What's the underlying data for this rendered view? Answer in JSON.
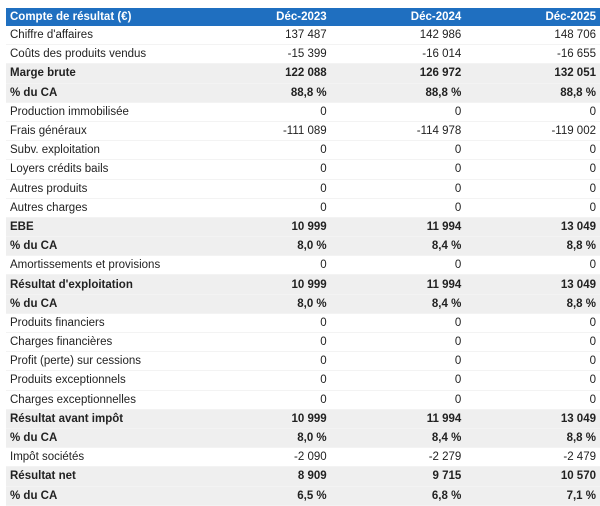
{
  "table": {
    "header": [
      "Compte de résultat (€)",
      "Déc-2023",
      "Déc-2024",
      "Déc-2025"
    ],
    "rows": [
      {
        "cells": [
          "Chiffre d'affaires",
          "137 487",
          "142 986",
          "148 706"
        ],
        "bold": false
      },
      {
        "cells": [
          "Coûts des produits vendus",
          "-15 399",
          "-16 014",
          "-16 655"
        ],
        "bold": false
      },
      {
        "cells": [
          "Marge brute",
          "122 088",
          "126 972",
          "132 051"
        ],
        "bold": true
      },
      {
        "cells": [
          "% du CA",
          "88,8 %",
          "88,8 %",
          "88,8 %"
        ],
        "bold": true
      },
      {
        "cells": [
          "Production immobilisée",
          "0",
          "0",
          "0"
        ],
        "bold": false
      },
      {
        "cells": [
          "Frais généraux",
          "-111 089",
          "-114 978",
          "-119 002"
        ],
        "bold": false
      },
      {
        "cells": [
          "Subv. exploitation",
          "0",
          "0",
          "0"
        ],
        "bold": false
      },
      {
        "cells": [
          "Loyers crédits bails",
          "0",
          "0",
          "0"
        ],
        "bold": false
      },
      {
        "cells": [
          "Autres produits",
          "0",
          "0",
          "0"
        ],
        "bold": false
      },
      {
        "cells": [
          "Autres charges",
          "0",
          "0",
          "0"
        ],
        "bold": false
      },
      {
        "cells": [
          "EBE",
          "10 999",
          "11 994",
          "13 049"
        ],
        "bold": true
      },
      {
        "cells": [
          "% du CA",
          "8,0 %",
          "8,4 %",
          "8,8 %"
        ],
        "bold": true
      },
      {
        "cells": [
          "Amortissements et provisions",
          "0",
          "0",
          "0"
        ],
        "bold": false
      },
      {
        "cells": [
          "Résultat d'exploitation",
          "10 999",
          "11 994",
          "13 049"
        ],
        "bold": true
      },
      {
        "cells": [
          "% du CA",
          "8,0 %",
          "8,4 %",
          "8,8 %"
        ],
        "bold": true
      },
      {
        "cells": [
          "Produits financiers",
          "0",
          "0",
          "0"
        ],
        "bold": false
      },
      {
        "cells": [
          "Charges financières",
          "0",
          "0",
          "0"
        ],
        "bold": false
      },
      {
        "cells": [
          "Profit (perte) sur cessions",
          "0",
          "0",
          "0"
        ],
        "bold": false
      },
      {
        "cells": [
          "Produits exceptionnels",
          "0",
          "0",
          "0"
        ],
        "bold": false
      },
      {
        "cells": [
          "Charges exceptionnelles",
          "0",
          "0",
          "0"
        ],
        "bold": false
      },
      {
        "cells": [
          "Résultat avant impôt",
          "10 999",
          "11 994",
          "13 049"
        ],
        "bold": true
      },
      {
        "cells": [
          "% du CA",
          "8,0 %",
          "8,4 %",
          "8,8 %"
        ],
        "bold": true
      },
      {
        "cells": [
          "Impôt sociétés",
          "-2 090",
          "-2 279",
          "-2 479"
        ],
        "bold": false
      },
      {
        "cells": [
          "Résultat net",
          "8 909",
          "9 715",
          "10 570"
        ],
        "bold": true
      },
      {
        "cells": [
          "% du CA",
          "6,5 %",
          "6,8 %",
          "7,1 %"
        ],
        "bold": true
      }
    ]
  }
}
